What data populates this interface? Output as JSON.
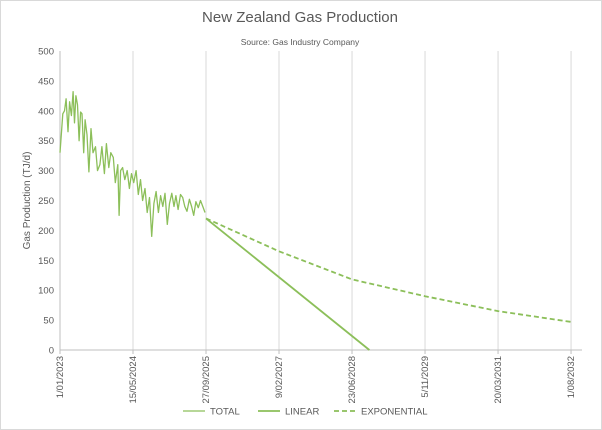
{
  "chart_data": {
    "type": "line",
    "title": "New Zealand Gas Production",
    "subtitle": "Source: Gas Industry Company",
    "ylabel": "Gas Production (TJ/d)",
    "xlabel": "",
    "ylim": [
      0,
      500
    ],
    "xlim": [
      "2023-01-01",
      "2032-10-15"
    ],
    "y_ticks": [
      0,
      50,
      100,
      150,
      200,
      250,
      300,
      350,
      400,
      450,
      500
    ],
    "x_ticks": [
      {
        "date": "2023-01-01",
        "label": "1/01/2023"
      },
      {
        "date": "2024-05-15",
        "label": "15/05/2024"
      },
      {
        "date": "2025-09-27",
        "label": "27/09/2025"
      },
      {
        "date": "2027-02-09",
        "label": "9/02/2027"
      },
      {
        "date": "2028-06-23",
        "label": "23/06/2028"
      },
      {
        "date": "2029-11-05",
        "label": "5/11/2029"
      },
      {
        "date": "2031-03-20",
        "label": "20/03/2031"
      },
      {
        "date": "2032-08-01",
        "label": "1/08/2032"
      }
    ],
    "grid": "vertical",
    "legend_position": "bottom",
    "colors": {
      "series": "#8cbf5a",
      "grid": "#d9d9d9",
      "axis": "#bfbfbf",
      "text": "#595959"
    },
    "series": [
      {
        "name": "TOTAL",
        "style": "thin",
        "points": [
          [
            "2023-01-01",
            330
          ],
          [
            "2023-01-10",
            360
          ],
          [
            "2023-01-20",
            395
          ],
          [
            "2023-02-01",
            400
          ],
          [
            "2023-02-12",
            420
          ],
          [
            "2023-02-25",
            365
          ],
          [
            "2023-03-08",
            415
          ],
          [
            "2023-03-20",
            392
          ],
          [
            "2023-04-01",
            432
          ],
          [
            "2023-04-10",
            380
          ],
          [
            "2023-04-20",
            425
          ],
          [
            "2023-05-01",
            410
          ],
          [
            "2023-05-12",
            350
          ],
          [
            "2023-05-22",
            398
          ],
          [
            "2023-06-01",
            395
          ],
          [
            "2023-06-12",
            330
          ],
          [
            "2023-06-22",
            385
          ],
          [
            "2023-07-05",
            360
          ],
          [
            "2023-07-18",
            298
          ],
          [
            "2023-08-01",
            370
          ],
          [
            "2023-08-15",
            330
          ],
          [
            "2023-09-01",
            340
          ],
          [
            "2023-09-15",
            300
          ],
          [
            "2023-10-01",
            310
          ],
          [
            "2023-10-15",
            340
          ],
          [
            "2023-11-01",
            295
          ],
          [
            "2023-11-15",
            345
          ],
          [
            "2023-12-01",
            305
          ],
          [
            "2023-12-15",
            330
          ],
          [
            "2024-01-01",
            322
          ],
          [
            "2024-01-15",
            280
          ],
          [
            "2024-02-01",
            310
          ],
          [
            "2024-02-10",
            225
          ],
          [
            "2024-02-20",
            300
          ],
          [
            "2024-03-05",
            305
          ],
          [
            "2024-03-20",
            285
          ],
          [
            "2024-04-05",
            300
          ],
          [
            "2024-04-20",
            270
          ],
          [
            "2024-05-05",
            295
          ],
          [
            "2024-05-20",
            280
          ],
          [
            "2024-06-05",
            300
          ],
          [
            "2024-06-20",
            260
          ],
          [
            "2024-07-05",
            285
          ],
          [
            "2024-07-20",
            250
          ],
          [
            "2024-08-05",
            270
          ],
          [
            "2024-08-20",
            230
          ],
          [
            "2024-09-05",
            255
          ],
          [
            "2024-09-20",
            190
          ],
          [
            "2024-10-05",
            245
          ],
          [
            "2024-10-20",
            265
          ],
          [
            "2024-11-05",
            230
          ],
          [
            "2024-11-20",
            258
          ],
          [
            "2024-12-05",
            240
          ],
          [
            "2024-12-20",
            262
          ],
          [
            "2025-01-05",
            210
          ],
          [
            "2025-01-20",
            245
          ],
          [
            "2025-02-05",
            262
          ],
          [
            "2025-02-20",
            240
          ],
          [
            "2025-03-05",
            258
          ],
          [
            "2025-03-20",
            235
          ],
          [
            "2025-04-05",
            260
          ],
          [
            "2025-04-20",
            255
          ],
          [
            "2025-05-05",
            240
          ],
          [
            "2025-05-20",
            232
          ],
          [
            "2025-06-05",
            252
          ],
          [
            "2025-06-20",
            240
          ],
          [
            "2025-07-05",
            225
          ],
          [
            "2025-07-20",
            248
          ],
          [
            "2025-08-05",
            238
          ],
          [
            "2025-08-20",
            250
          ],
          [
            "2025-09-05",
            240
          ],
          [
            "2025-09-20",
            230
          ]
        ]
      },
      {
        "name": "LINEAR",
        "style": "solid",
        "points": [
          [
            "2025-09-27",
            220
          ],
          [
            "2028-10-20",
            0
          ]
        ]
      },
      {
        "name": "EXPONENTIAL",
        "style": "dashed",
        "points": [
          [
            "2025-09-27",
            220
          ],
          [
            "2027-02-09",
            165
          ],
          [
            "2028-06-23",
            118
          ],
          [
            "2029-11-05",
            90
          ],
          [
            "2031-03-20",
            65
          ],
          [
            "2032-08-01",
            47
          ]
        ]
      }
    ]
  }
}
